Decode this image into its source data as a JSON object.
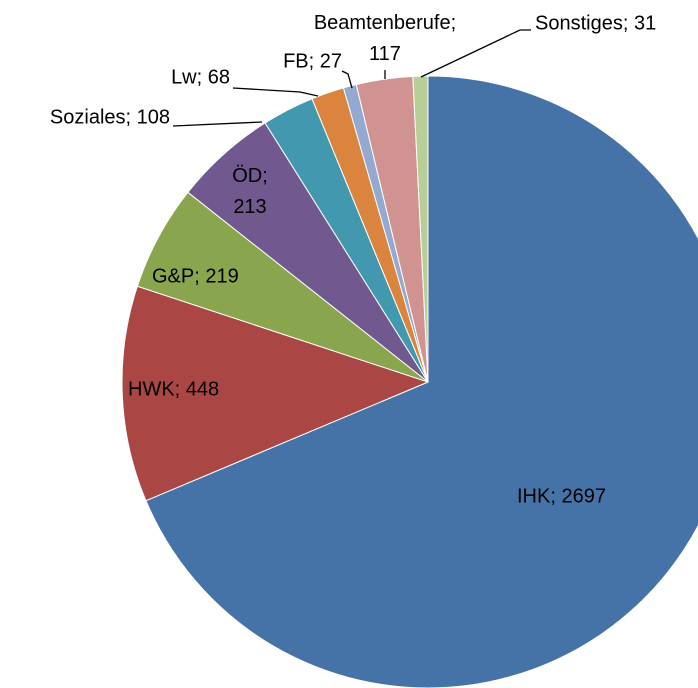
{
  "chart_data": {
    "type": "pie",
    "values": [
      2697,
      448,
      219,
      213,
      108,
      68,
      27,
      117,
      31
    ],
    "value_labels": [
      "IHK; 2697",
      "HWK; 448",
      "G&P; 219",
      "ÖD; 213",
      "Soziales; 108",
      "Lw; 68",
      "FB; 27",
      "Beamtenberufe; 117",
      "Sonstiges; 31"
    ],
    "colors": [
      "#4572a7",
      "#aa4643",
      "#89a54e",
      "#71588f",
      "#4198af",
      "#db843d",
      "#93a9cf",
      "#d19392",
      "#b9cd96"
    ],
    "start_angle": 0,
    "direction": "clockwise"
  }
}
